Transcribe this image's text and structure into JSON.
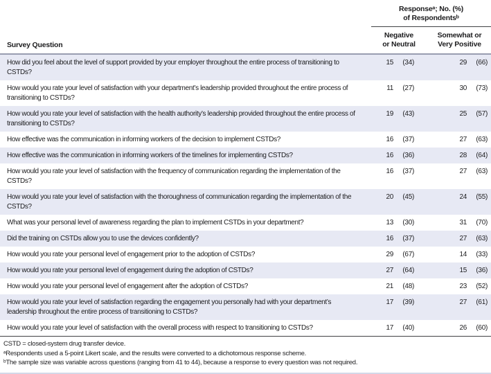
{
  "table": {
    "spanner": {
      "line1": "Responseᵃ; No. (%)",
      "line2": "of Respondentsᵇ"
    },
    "columns": {
      "question": "Survey Question",
      "negative_line1": "Negative",
      "negative_line2": "or Neutral",
      "positive_line1": "Somewhat or",
      "positive_line2": "Very Positive"
    },
    "rows": [
      {
        "question": "How did you feel about the level of support provided by your employer throughout the entire process of transitioning to CSTDs?",
        "negative_n": 15,
        "negative_pct": 34,
        "positive_n": 29,
        "positive_pct": 66
      },
      {
        "question": "How would you rate your level of satisfaction with your department’s leadership provided throughout the entire process of transitioning to CSTDs?",
        "negative_n": 11,
        "negative_pct": 27,
        "positive_n": 30,
        "positive_pct": 73
      },
      {
        "question": "How would you rate your level of satisfaction with the health authority’s leadership provided throughout the entire process of transitioning to CSTDs?",
        "negative_n": 19,
        "negative_pct": 43,
        "positive_n": 25,
        "positive_pct": 57
      },
      {
        "question": "How effective was the communication in informing workers of the decision to implement CSTDs?",
        "negative_n": 16,
        "negative_pct": 37,
        "positive_n": 27,
        "positive_pct": 63
      },
      {
        "question": "How effective was the communication in informing workers of the timelines for implementing CSTDs?",
        "negative_n": 16,
        "negative_pct": 36,
        "positive_n": 28,
        "positive_pct": 64
      },
      {
        "question": "How would you rate your level of satisfaction with the frequency of communication regarding the implementation of the CSTDs?",
        "negative_n": 16,
        "negative_pct": 37,
        "positive_n": 27,
        "positive_pct": 63
      },
      {
        "question": "How would you rate your level of satisfaction with the thoroughness of communication regarding the implementation of the CSTDs?",
        "negative_n": 20,
        "negative_pct": 45,
        "positive_n": 24,
        "positive_pct": 55
      },
      {
        "question": "What was your personal level of awareness regarding the plan to implement CSTDs in your department?",
        "negative_n": 13,
        "negative_pct": 30,
        "positive_n": 31,
        "positive_pct": 70
      },
      {
        "question": "Did the training on CSTDs allow you to use the devices confidently?",
        "negative_n": 16,
        "negative_pct": 37,
        "positive_n": 27,
        "positive_pct": 63
      },
      {
        "question": "How would you rate your personal level of engagement prior to the adoption of CSTDs?",
        "negative_n": 29,
        "negative_pct": 67,
        "positive_n": 14,
        "positive_pct": 33
      },
      {
        "question": "How would you rate your personal level of engagement during the adoption of CSTDs?",
        "negative_n": 27,
        "negative_pct": 64,
        "positive_n": 15,
        "positive_pct": 36
      },
      {
        "question": "How would you rate your personal level of engagement after the adoption of CSTDs?",
        "negative_n": 21,
        "negative_pct": 48,
        "positive_n": 23,
        "positive_pct": 52
      },
      {
        "question": "How would you rate your level of satisfaction regarding the engagement you personally had with your department’s leadership throughout the entire process of transitioning to CSTDs?",
        "negative_n": 17,
        "negative_pct": 39,
        "positive_n": 27,
        "positive_pct": 61
      },
      {
        "question": "How would you rate your level of satisfaction with the overall process with respect to transitioning to CSTDs?",
        "negative_n": 17,
        "negative_pct": 40,
        "positive_n": 26,
        "positive_pct": 60
      }
    ]
  },
  "footnotes": [
    "CSTD = closed-system drug transfer device.",
    "ᵃRespondents used a 5-point Likert scale, and the results were converted to a dichotomous response scheme.",
    "ᵇThe sample size was variable across questions (ranging from 41 to 44), because a response to every question was not required."
  ],
  "colors": {
    "row_shade": "#e7e9f4",
    "text": "#1c1c1e",
    "rule_dark": "#3f4043",
    "rule_gray": "#989db0",
    "rule_light": "#d3d8e8"
  }
}
